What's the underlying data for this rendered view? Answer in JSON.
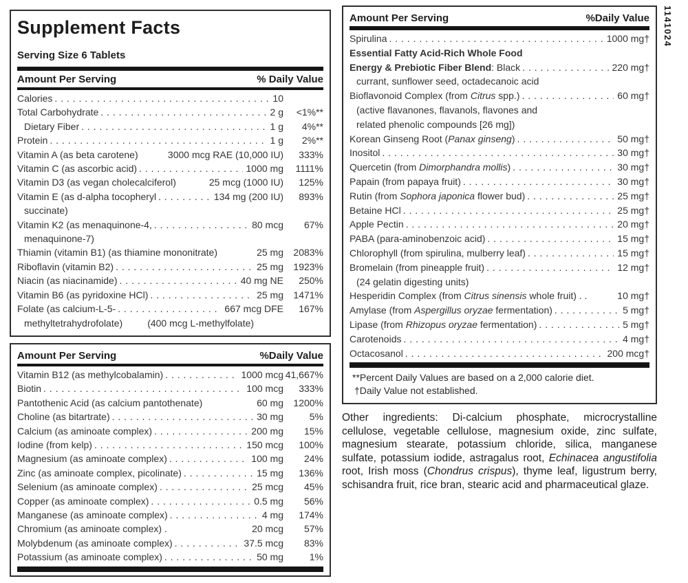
{
  "side_code": "1141024",
  "title": "Supplement Facts",
  "serving_size": "Serving Size 6 Tablets",
  "headers": {
    "amount": "Amount Per Serving",
    "dv1": "% Daily Value",
    "dv2": "%Daily Value"
  },
  "footnotes": {
    "line1": "**Percent Daily Values are based on a 2,000 calorie diet.",
    "line2": "†Daily Value not established."
  },
  "table1": {
    "rows": [
      {
        "parts": [
          {
            "t": "Calories"
          }
        ],
        "leader": true,
        "amount": "10",
        "dv": ""
      },
      {
        "parts": [
          {
            "t": "Total Carbohydrate"
          }
        ],
        "leader": true,
        "amount": "2 g",
        "dv": "<1%**"
      },
      {
        "parts": [
          {
            "t": "Dietary Fiber"
          }
        ],
        "indent": true,
        "leader": true,
        "amount": "1 g",
        "dv": "4%**"
      },
      {
        "parts": [
          {
            "t": "Protein"
          }
        ],
        "leader": true,
        "amount": "1 g",
        "dv": "2%**"
      },
      {
        "parts": [
          {
            "t": "Vitamin A (as beta carotene)"
          }
        ],
        "leader": false,
        "amount": "3000 mcg RAE (10,000 IU)",
        "dv": "333%"
      },
      {
        "parts": [
          {
            "t": "Vitamin C (as ascorbic acid)"
          }
        ],
        "leader": true,
        "amount": "1000 mg",
        "dv": "1111%"
      },
      {
        "parts": [
          {
            "t": "Vitamin D3 (as vegan cholecalciferol)"
          }
        ],
        "leader": false,
        "amount": "25 mcg (1000 IU)",
        "dv": "125%"
      },
      {
        "parts": [
          {
            "t": "Vitamin E (as d-alpha tocopheryl"
          }
        ],
        "leader": true,
        "amount": "134 mg (200 IU)",
        "dv": "893%",
        "subs": [
          {
            "parts": [
              {
                "t": "succinate)"
              }
            ]
          }
        ]
      },
      {
        "parts": [
          {
            "t": "Vitamin K2 (as menaquinone-4,"
          }
        ],
        "leader": true,
        "amount": "80 mcg",
        "dv": "67%",
        "subs": [
          {
            "parts": [
              {
                "t": "menaquinone-7)"
              }
            ]
          }
        ]
      },
      {
        "parts": [
          {
            "t": "Thiamin (vitamin B1) (as thiamine mononitrate)"
          }
        ],
        "leader": false,
        "amount": "25 mg",
        "dv": "2083%"
      },
      {
        "parts": [
          {
            "t": "Riboflavin (vitamin B2)"
          }
        ],
        "leader": true,
        "amount": "25 mg",
        "dv": "1923%"
      },
      {
        "parts": [
          {
            "t": "Niacin (as niacinamide)"
          }
        ],
        "leader": true,
        "amount": "40 mg NE",
        "dv": "250%"
      },
      {
        "parts": [
          {
            "t": "Vitamin B6 (as pyridoxine HCl)"
          }
        ],
        "leader": true,
        "amount": "25 mg",
        "dv": "1471%"
      },
      {
        "parts": [
          {
            "t": "Folate (as calcium-L-5-"
          }
        ],
        "leader": true,
        "amount": "667 mcg DFE",
        "dv": "167%",
        "subs": [
          {
            "parts": [
              {
                "t": "methyltetrahydrofolate)"
              },
              {
                "t": "(400 mcg L-methylfolate)",
                "pad": true
              }
            ]
          }
        ]
      }
    ]
  },
  "table2": {
    "rows": [
      {
        "parts": [
          {
            "t": "Vitamin B12 (as methylcobalamin)"
          }
        ],
        "leader": true,
        "amount": "1000 mcg",
        "dv": "41,667%"
      },
      {
        "parts": [
          {
            "t": "Biotin"
          }
        ],
        "leader": true,
        "amount": "100 mcg",
        "dv": "333%"
      },
      {
        "parts": [
          {
            "t": "Pantothenic Acid (as calcium pantothenate)"
          }
        ],
        "leader": false,
        "amount": "60 mg",
        "dv": "1200%"
      },
      {
        "parts": [
          {
            "t": "Choline (as bitartrate)"
          }
        ],
        "leader": true,
        "amount": "30 mg",
        "dv": "5%"
      },
      {
        "parts": [
          {
            "t": "Calcium (as aminoate complex)"
          }
        ],
        "leader": true,
        "amount": "200 mg",
        "dv": "15%"
      },
      {
        "parts": [
          {
            "t": "Iodine (from kelp)"
          }
        ],
        "leader": true,
        "amount": "150 mcg",
        "dv": "100%"
      },
      {
        "parts": [
          {
            "t": "Magnesium (as aminoate complex)"
          }
        ],
        "leader": true,
        "amount": "100 mg",
        "dv": "24%"
      },
      {
        "parts": [
          {
            "t": "Zinc (as aminoate complex, picolinate)"
          }
        ],
        "leader": true,
        "amount": "15 mg",
        "dv": "136%"
      },
      {
        "parts": [
          {
            "t": "Selenium (as aminoate complex)"
          }
        ],
        "leader": true,
        "amount": "25 mcg",
        "dv": "45%"
      },
      {
        "parts": [
          {
            "t": "Copper (as aminoate complex)"
          }
        ],
        "leader": true,
        "amount": "0.5 mg",
        "dv": "56%"
      },
      {
        "parts": [
          {
            "t": "Manganese (as aminoate complex)"
          }
        ],
        "leader": true,
        "amount": "4 mg",
        "dv": "174%"
      },
      {
        "parts": [
          {
            "t": "Chromium (as aminoate complex) ."
          }
        ],
        "leader": false,
        "amount": "20 mcg",
        "dv": "57%"
      },
      {
        "parts": [
          {
            "t": "Molybdenum (as aminoate complex)"
          }
        ],
        "leader": true,
        "amount": "37.5 mcg",
        "dv": "83%"
      },
      {
        "parts": [
          {
            "t": "Potassium (as aminoate complex)"
          }
        ],
        "leader": true,
        "amount": "50 mg",
        "dv": "1%"
      }
    ]
  },
  "table3": {
    "rows": [
      {
        "parts": [
          {
            "t": "Spirulina"
          }
        ],
        "leader": true,
        "amount": "1000 mg†"
      },
      {
        "parts": [
          {
            "t": "Essential Fatty Acid-Rich Whole Food",
            "b": true
          }
        ],
        "leader": false,
        "amount": ""
      },
      {
        "parts": [
          {
            "t": "Energy & Prebiotic Fiber Blend",
            "b": true
          },
          {
            "t": ": Black"
          }
        ],
        "leader": true,
        "amount": "220 mg†",
        "subs": [
          {
            "parts": [
              {
                "t": "currant, sunflower seed, octadecanoic acid"
              }
            ]
          }
        ]
      },
      {
        "parts": [
          {
            "t": "Bioflavonoid Complex (from "
          },
          {
            "t": "Citrus",
            "i": true
          },
          {
            "t": " spp.)"
          }
        ],
        "leader": true,
        "amount": "60 mg†",
        "subs": [
          {
            "parts": [
              {
                "t": "(active flavanones, flavanols, flavones and"
              }
            ]
          },
          {
            "parts": [
              {
                "t": "related phenolic compounds [26 mg])"
              }
            ]
          }
        ]
      },
      {
        "parts": [
          {
            "t": "Korean Ginseng Root ("
          },
          {
            "t": "Panax ginseng",
            "i": true
          },
          {
            "t": ")"
          }
        ],
        "leader": true,
        "amount": "50 mg†"
      },
      {
        "parts": [
          {
            "t": "Inositol"
          }
        ],
        "leader": true,
        "amount": "30 mg†"
      },
      {
        "parts": [
          {
            "t": "Quercetin (from "
          },
          {
            "t": "Dimorphandra mollis",
            "i": true
          },
          {
            "t": ")"
          }
        ],
        "leader": true,
        "amount": "30 mg†"
      },
      {
        "parts": [
          {
            "t": "Papain (from papaya fruit)"
          }
        ],
        "leader": true,
        "amount": "30 mg†"
      },
      {
        "parts": [
          {
            "t": "Rutin (from "
          },
          {
            "t": "Sophora japonica",
            "i": true
          },
          {
            "t": " flower bud)"
          }
        ],
        "leader": true,
        "amount": "25 mg†"
      },
      {
        "parts": [
          {
            "t": "Betaine HCl"
          }
        ],
        "leader": true,
        "amount": "25 mg†"
      },
      {
        "parts": [
          {
            "t": "Apple Pectin"
          }
        ],
        "leader": true,
        "amount": "20 mg†"
      },
      {
        "parts": [
          {
            "t": "PABA (para-aminobenzoic acid)"
          }
        ],
        "leader": true,
        "amount": "15 mg†"
      },
      {
        "parts": [
          {
            "t": "Chlorophyll (from spirulina, mulberry leaf)"
          }
        ],
        "leader": true,
        "amount": "15 mg†"
      },
      {
        "parts": [
          {
            "t": "Bromelain (from pineapple fruit)"
          }
        ],
        "leader": true,
        "amount": "12 mg†",
        "subs": [
          {
            "parts": [
              {
                "t": "(24 gelatin digesting units)"
              }
            ]
          }
        ]
      },
      {
        "parts": [
          {
            "t": "Hesperidin Complex (from "
          },
          {
            "t": "Citrus sinensis",
            "i": true
          },
          {
            "t": " whole fruit) . ."
          }
        ],
        "leader": false,
        "amount": "10 mg†"
      },
      {
        "parts": [
          {
            "t": "Amylase (from "
          },
          {
            "t": "Aspergillus oryzae",
            "i": true
          },
          {
            "t": " fermentation)"
          }
        ],
        "leader": true,
        "amount": "5 mg†"
      },
      {
        "parts": [
          {
            "t": "Lipase (from "
          },
          {
            "t": "Rhizopus oryzae",
            "i": true
          },
          {
            "t": " fermentation)"
          }
        ],
        "leader": true,
        "amount": "5 mg†"
      },
      {
        "parts": [
          {
            "t": "Carotenoids"
          }
        ],
        "leader": true,
        "amount": "4 mg†"
      },
      {
        "parts": [
          {
            "t": "Octacosanol"
          }
        ],
        "leader": true,
        "amount": "200 mcg†"
      }
    ]
  },
  "other_ingredients": {
    "parts": [
      {
        "t": "Other ingredients: Di-calcium phosphate, microcrystalline cellulose, vegetable cellulose, magnesium oxide, zinc sulfate, magnesium stearate, potassium chloride, silica, manganese sulfate, potassium iodide, astragalus root, "
      },
      {
        "t": "Echinacea angustifolia",
        "i": true
      },
      {
        "t": " root, Irish moss ("
      },
      {
        "t": "Chondrus crispus",
        "i": true
      },
      {
        "t": "), thyme leaf, ligustrum berry, schisandra fruit, rice bran, stearic acid and pharmaceutical glaze."
      }
    ]
  }
}
